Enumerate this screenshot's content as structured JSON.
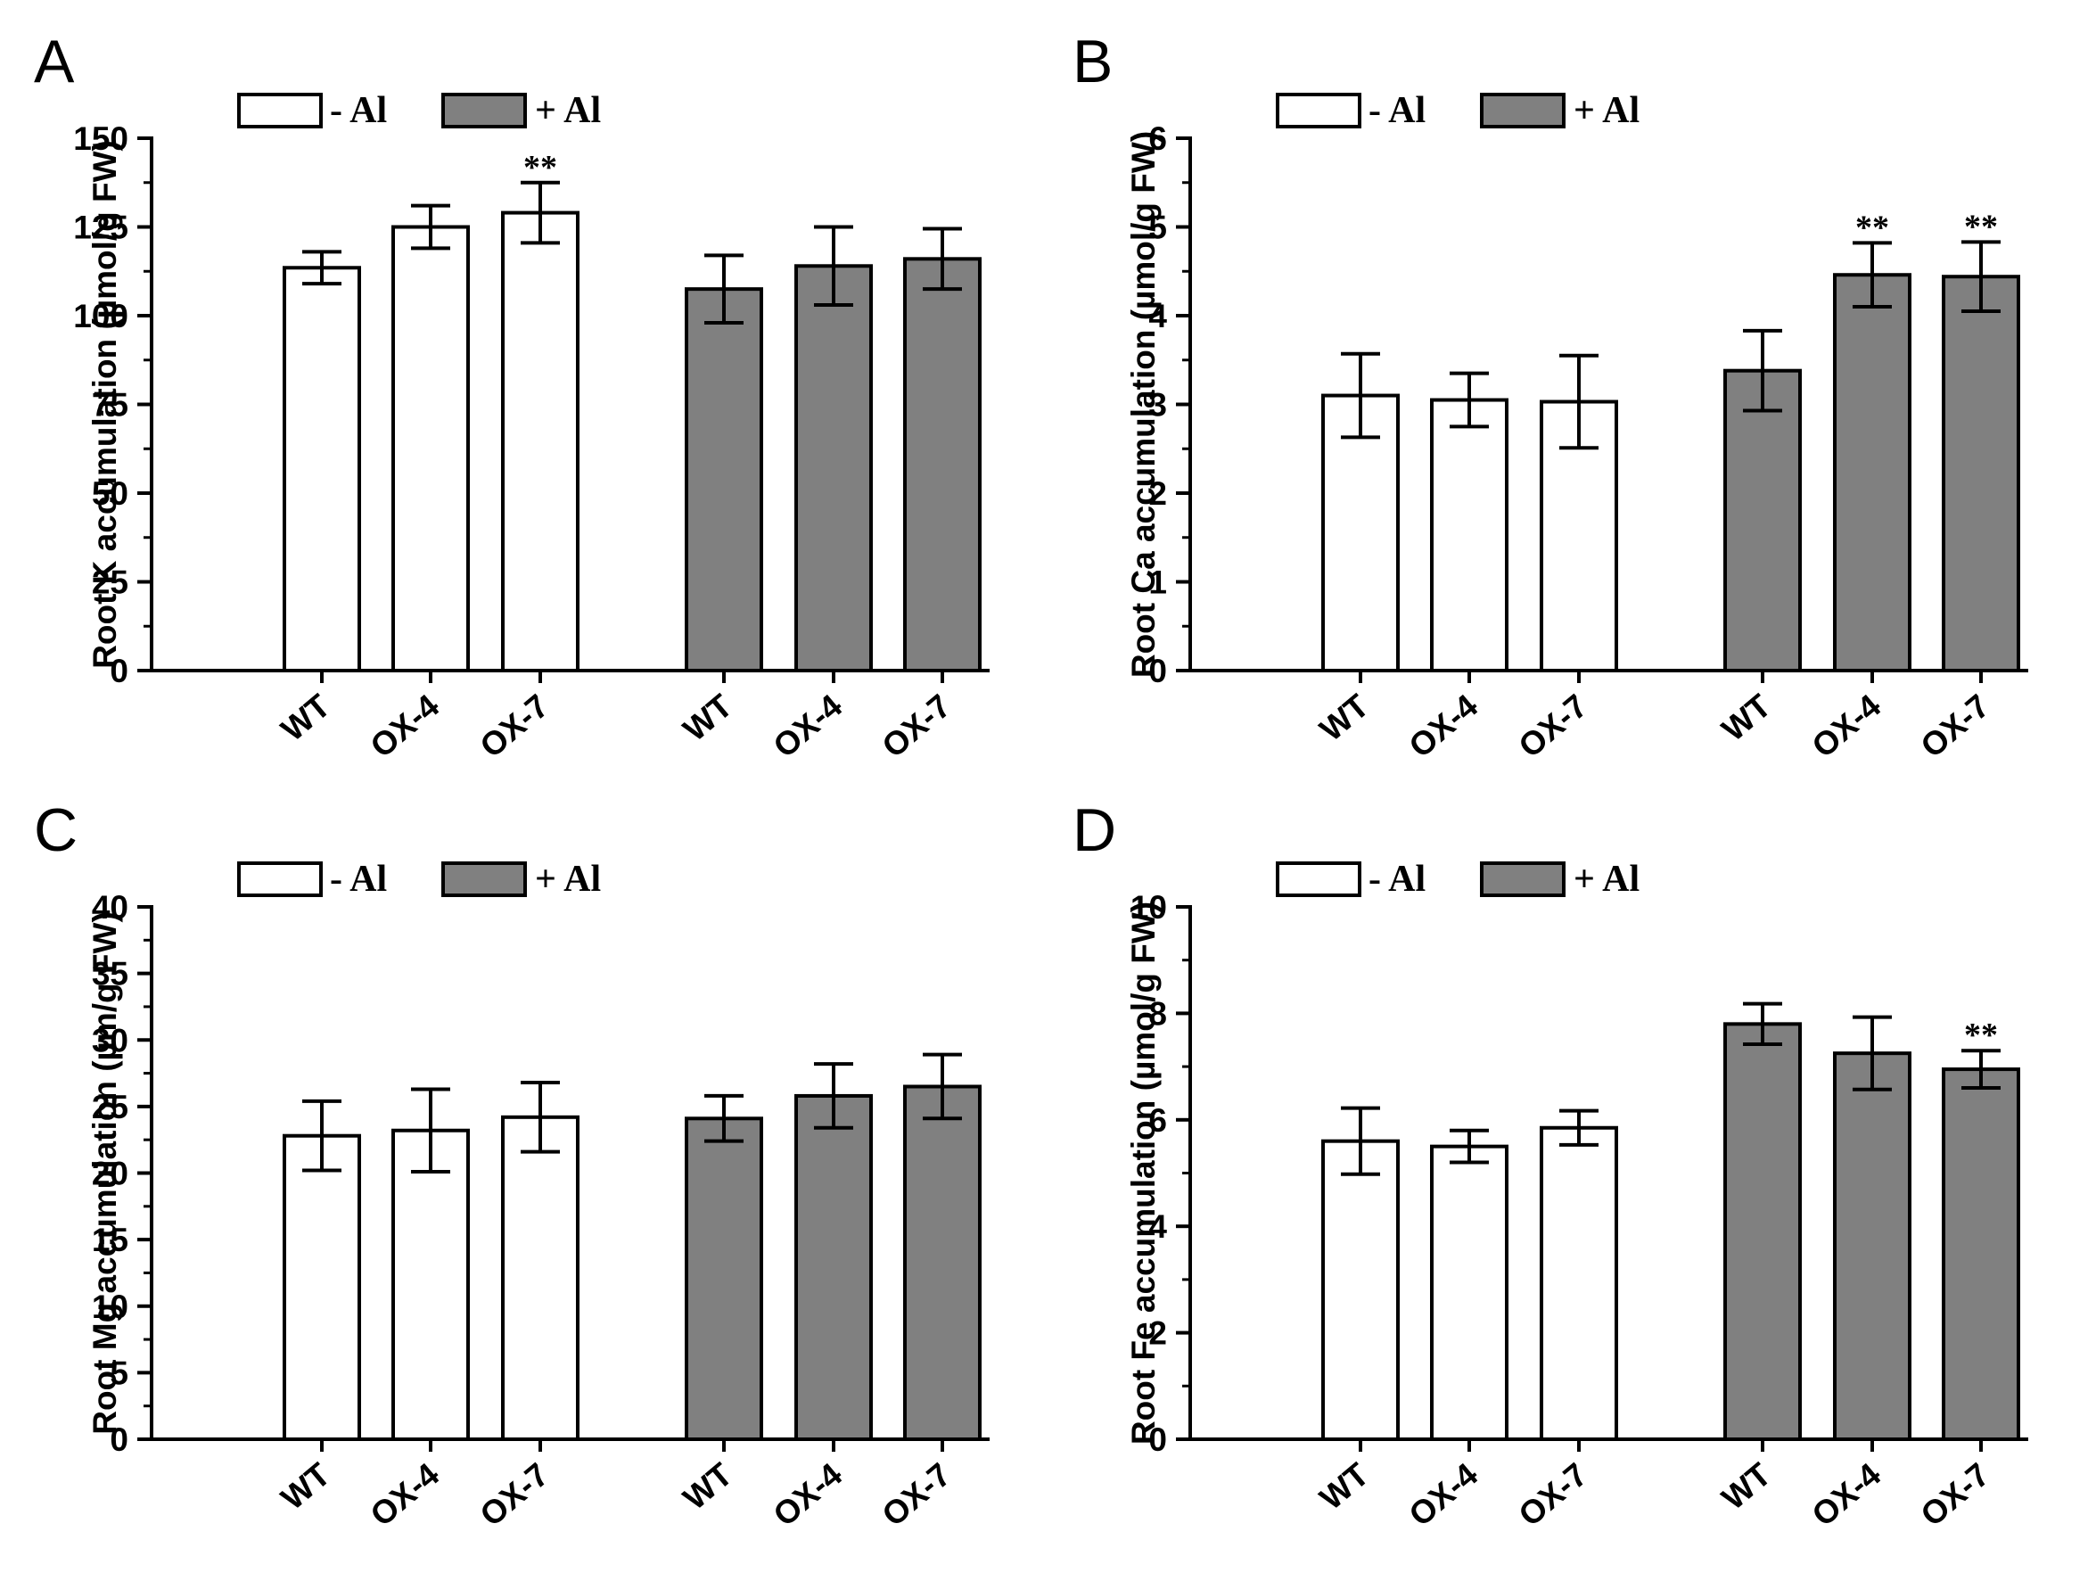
{
  "figure": {
    "legend": {
      "minus_label": "- Al",
      "plus_label": "+ Al"
    },
    "colors": {
      "minus_fill": "#ffffff",
      "plus_fill": "#808080",
      "stroke": "#000000"
    }
  },
  "chart_data": [
    {
      "type": "bar",
      "panel": "A",
      "title": "",
      "xlabel": "",
      "ylabel": "Root K accumulation (µmol/g FW)",
      "ylim": [
        0,
        150
      ],
      "yticks": [
        "0",
        "25",
        "50",
        "75",
        "100",
        "125",
        "150"
      ],
      "categories": [
        "WT",
        "OX-4",
        "OX-7"
      ],
      "series": [
        {
          "name": "- Al",
          "values": [
            113.5,
            125,
            129
          ],
          "errors": [
            4.5,
            6,
            8.5
          ],
          "marks": [
            "",
            "",
            "**"
          ]
        },
        {
          "name": "+ Al",
          "values": [
            107.5,
            114,
            116
          ],
          "errors": [
            9.5,
            11,
            8.5
          ],
          "marks": [
            "",
            "",
            ""
          ]
        }
      ]
    },
    {
      "type": "bar",
      "panel": "B",
      "title": "",
      "xlabel": "",
      "ylabel": "Root Ca accumulation (µmol/g FW)",
      "ylim": [
        0,
        6
      ],
      "yticks": [
        "0",
        "1",
        "2",
        "3",
        "4",
        "5",
        "6"
      ],
      "categories": [
        "WT",
        "OX-4",
        "OX-7"
      ],
      "series": [
        {
          "name": "- Al",
          "values": [
            3.1,
            3.05,
            3.03
          ],
          "errors": [
            0.47,
            0.3,
            0.52
          ],
          "marks": [
            "",
            "",
            ""
          ]
        },
        {
          "name": "+ Al",
          "values": [
            3.38,
            4.46,
            4.44
          ],
          "errors": [
            0.45,
            0.36,
            0.39
          ],
          "marks": [
            "",
            "**",
            "**"
          ]
        }
      ]
    },
    {
      "type": "bar",
      "panel": "C",
      "title": "",
      "xlabel": "",
      "ylabel": "Root Mg accumulation (µm/g FW)",
      "ylim": [
        0,
        40
      ],
      "yticks": [
        "0",
        "5",
        "10",
        "15",
        "20",
        "25",
        "30",
        "35",
        "40"
      ],
      "categories": [
        "WT",
        "OX-4",
        "OX-7"
      ],
      "series": [
        {
          "name": "- Al",
          "values": [
            22.8,
            23.2,
            24.2
          ],
          "errors": [
            2.6,
            3.1,
            2.6
          ],
          "marks": [
            "",
            "",
            ""
          ]
        },
        {
          "name": "+ Al",
          "values": [
            24.1,
            25.8,
            26.5
          ],
          "errors": [
            1.7,
            2.4,
            2.4
          ],
          "marks": [
            "",
            "",
            ""
          ]
        }
      ]
    },
    {
      "type": "bar",
      "panel": "D",
      "title": "",
      "xlabel": "",
      "ylabel": "Root Fe accumulation (µmol/g FW)",
      "ylim": [
        0,
        10
      ],
      "yticks": [
        "0",
        "2",
        "4",
        "6",
        "8",
        "10"
      ],
      "categories": [
        "WT",
        "OX-4",
        "OX-7"
      ],
      "series": [
        {
          "name": "- Al",
          "values": [
            5.6,
            5.5,
            5.85
          ],
          "errors": [
            0.62,
            0.3,
            0.32
          ],
          "marks": [
            "",
            "",
            ""
          ]
        },
        {
          "name": "+ Al",
          "values": [
            7.8,
            7.25,
            6.95
          ],
          "errors": [
            0.38,
            0.68,
            0.35
          ],
          "marks": [
            "",
            "",
            "**"
          ]
        }
      ]
    }
  ]
}
